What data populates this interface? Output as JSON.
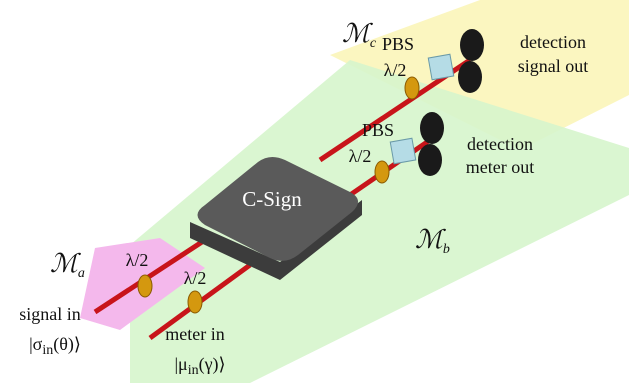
{
  "regions": [
    {
      "symbol": "ℳ",
      "subscript": "c"
    },
    {
      "symbol": "ℳ",
      "subscript": "b"
    },
    {
      "symbol": "ℳ",
      "subscript": "a"
    }
  ],
  "gate": "C-Sign",
  "upper_stage": {
    "pbs": "PBS",
    "waveplate": "λ/2",
    "detection": "detection",
    "output": "signal out"
  },
  "lower_stage": {
    "pbs": "PBS",
    "waveplate": "λ/2",
    "detection": "detection",
    "output": "meter out"
  },
  "inputs": [
    {
      "waveplate": "λ/2",
      "label": "signal in",
      "ket": {
        "prefix": "|σ",
        "subscript": "in",
        "suffix": "(θ)⟩"
      }
    },
    {
      "waveplate": "λ/2",
      "label": "meter in",
      "ket": {
        "prefix": "|μ",
        "subscript": "in",
        "suffix": "(γ)⟩"
      }
    }
  ]
}
